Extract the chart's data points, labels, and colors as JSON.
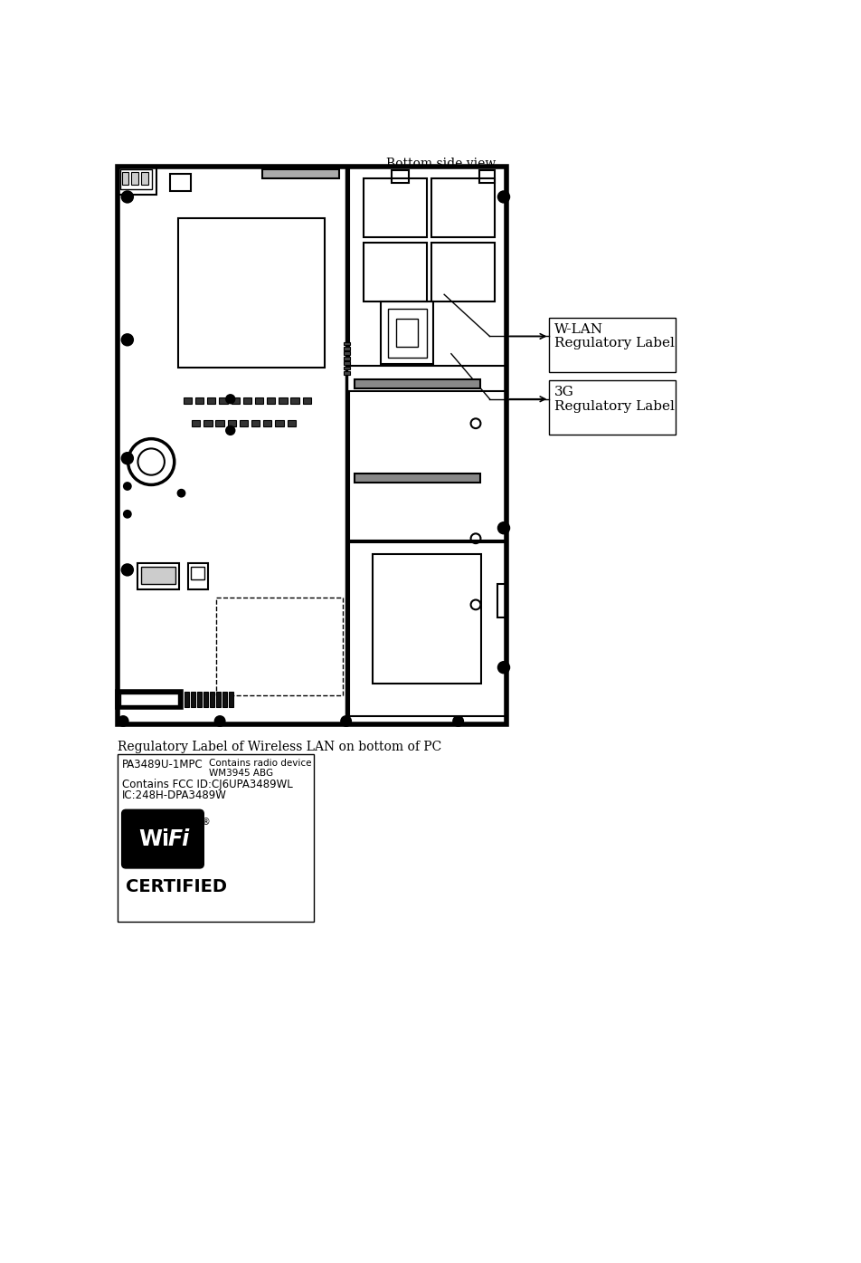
{
  "title": "Bottom side view",
  "subtitle": "Regulatory Label of Wireless LAN on bottom of PC",
  "wlan_label_title": "W-LAN",
  "wlan_label_sub": "Regulatory Label",
  "g3_label_title": "3G",
  "g3_label_sub": "Regulatory Label",
  "wifi_label_line1": "PA3489U-1MPC",
  "wifi_label_line2": "Contains radio device",
  "wifi_label_line3": "WM3945 ABG",
  "wifi_label_line4": "Contains FCC ID:CJ6UPA3489WL",
  "wifi_label_line5": "IC:248H-DPA3489W",
  "bg_color": "#ffffff",
  "fg_color": "#000000",
  "line_color": "#000000"
}
